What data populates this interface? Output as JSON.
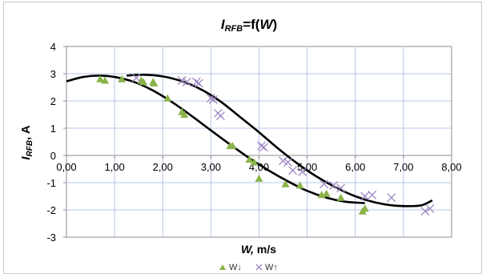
{
  "chart_data": {
    "type": "scatter",
    "title_main": "I",
    "title_sub": "RFB",
    "title_rest": "=f(",
    "title_var": "W",
    "title_end": ")",
    "ylabel_main": "I",
    "ylabel_sub": "RFB",
    "ylabel_rest": ", A",
    "xlabel_var": "W,",
    "xlabel_unit": " m/s",
    "xlim": [
      0,
      8
    ],
    "ylim": [
      -3,
      4
    ],
    "x_ticks": [
      0,
      1,
      2,
      3,
      4,
      5,
      6,
      7,
      8
    ],
    "x_tick_labels": [
      "0,00",
      "1,00",
      "2,00",
      "3,00",
      "4,00",
      "5,00",
      "6,00",
      "7,00",
      "8,00"
    ],
    "y_ticks": [
      -3,
      -2,
      -1,
      0,
      1,
      2,
      3,
      4
    ],
    "y_tick_labels": [
      "-3",
      "-2",
      "-1",
      "0",
      "1",
      "2",
      "3",
      "4"
    ],
    "grid": true,
    "legend_position": "bottom",
    "series": [
      {
        "name": "W↓",
        "marker": "triangle",
        "color": "#8ab34a",
        "points": [
          [
            0.7,
            2.8
          ],
          [
            0.8,
            2.75
          ],
          [
            1.15,
            2.8
          ],
          [
            1.55,
            2.75
          ],
          [
            1.6,
            2.7
          ],
          [
            1.8,
            2.7
          ],
          [
            1.82,
            2.65
          ],
          [
            2.1,
            2.1
          ],
          [
            2.4,
            1.6
          ],
          [
            2.45,
            1.5
          ],
          [
            3.4,
            0.35
          ],
          [
            3.45,
            0.35
          ],
          [
            3.8,
            -0.15
          ],
          [
            3.9,
            -0.25
          ],
          [
            4.0,
            -0.85
          ],
          [
            4.55,
            -1.05
          ],
          [
            4.85,
            -1.1
          ],
          [
            5.3,
            -1.45
          ],
          [
            5.4,
            -1.4
          ],
          [
            5.7,
            -1.55
          ],
          [
            6.15,
            -2.05
          ],
          [
            6.2,
            -1.95
          ]
        ]
      },
      {
        "name": "W↑",
        "marker": "x",
        "color": "#9d86c3",
        "points": [
          [
            1.45,
            2.85
          ],
          [
            2.4,
            2.75
          ],
          [
            2.5,
            2.7
          ],
          [
            2.7,
            2.7
          ],
          [
            2.75,
            2.65
          ],
          [
            3.0,
            2.1
          ],
          [
            3.05,
            2.05
          ],
          [
            3.15,
            1.55
          ],
          [
            3.2,
            1.45
          ],
          [
            4.05,
            0.35
          ],
          [
            4.1,
            0.3
          ],
          [
            4.5,
            -0.2
          ],
          [
            4.6,
            -0.25
          ],
          [
            4.7,
            -0.55
          ],
          [
            4.9,
            -0.6
          ],
          [
            5.35,
            -1.05
          ],
          [
            5.55,
            -1.1
          ],
          [
            5.7,
            -1.2
          ],
          [
            6.2,
            -1.5
          ],
          [
            6.35,
            -1.45
          ],
          [
            6.75,
            -1.55
          ],
          [
            7.45,
            -2.05
          ],
          [
            7.55,
            -1.95
          ]
        ]
      }
    ],
    "trendlines": [
      {
        "series": "W↓",
        "color": "#000000",
        "points": [
          [
            0,
            2.72
          ],
          [
            0.35,
            2.88
          ],
          [
            0.7,
            2.93
          ],
          [
            1.0,
            2.88
          ],
          [
            1.4,
            2.7
          ],
          [
            1.8,
            2.38
          ],
          [
            2.2,
            1.95
          ],
          [
            2.6,
            1.45
          ],
          [
            3.0,
            0.92
          ],
          [
            3.4,
            0.4
          ],
          [
            3.8,
            -0.1
          ],
          [
            4.2,
            -0.55
          ],
          [
            4.6,
            -0.95
          ],
          [
            5.0,
            -1.3
          ],
          [
            5.4,
            -1.55
          ],
          [
            5.8,
            -1.7
          ],
          [
            6.2,
            -1.75
          ]
        ]
      },
      {
        "series": "W↑",
        "color": "#000000",
        "points": [
          [
            1.25,
            2.93
          ],
          [
            1.6,
            2.96
          ],
          [
            2.0,
            2.9
          ],
          [
            2.4,
            2.72
          ],
          [
            2.8,
            2.42
          ],
          [
            3.2,
            1.98
          ],
          [
            3.6,
            1.42
          ],
          [
            4.0,
            0.85
          ],
          [
            4.4,
            0.25
          ],
          [
            4.8,
            -0.3
          ],
          [
            5.2,
            -0.78
          ],
          [
            5.6,
            -1.18
          ],
          [
            6.0,
            -1.5
          ],
          [
            6.4,
            -1.72
          ],
          [
            6.8,
            -1.84
          ],
          [
            7.2,
            -1.86
          ],
          [
            7.4,
            -1.82
          ],
          [
            7.6,
            -1.65
          ]
        ]
      }
    ]
  }
}
